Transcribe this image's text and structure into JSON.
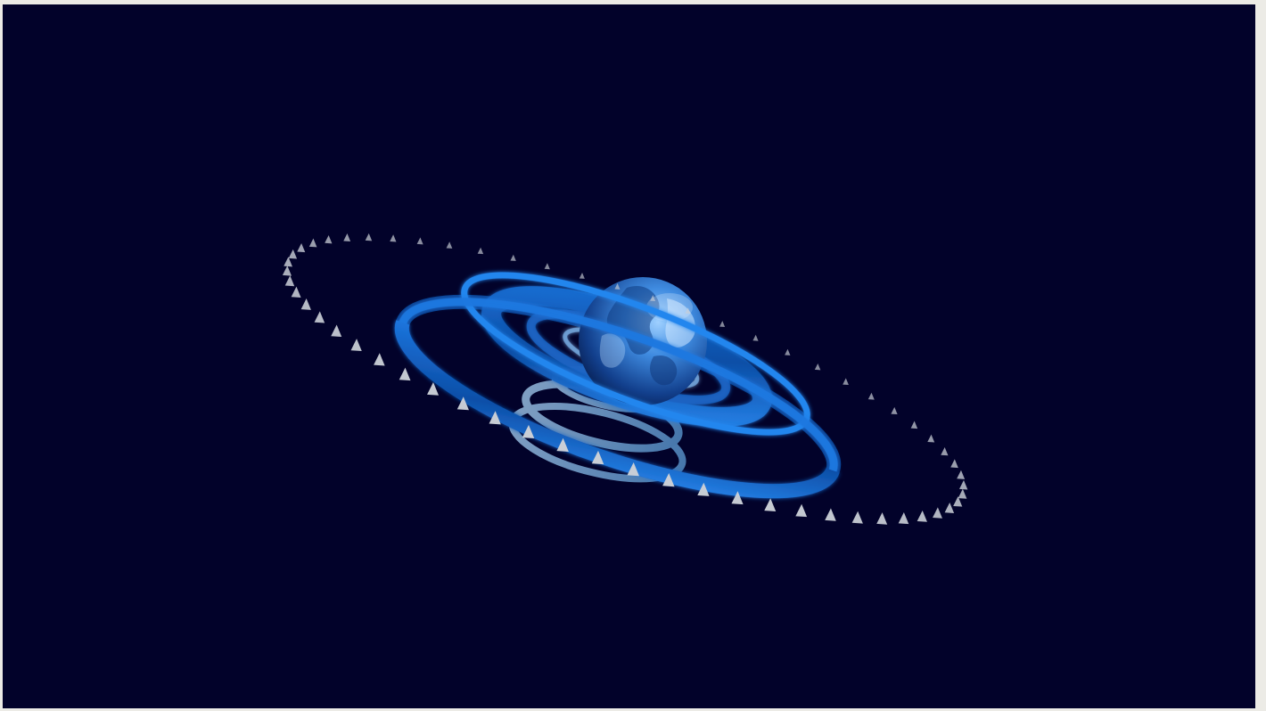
{
  "scene": {
    "subject": "globe-with-orbit-rings",
    "colors": {
      "page_border": "#ecebe6",
      "background": "#02022a",
      "ring_bright": "#1e7ee8",
      "ring_dark": "#0b3f8f",
      "globe_light": "#6fb6ff",
      "globe_dark": "#0a2c6e",
      "marker": "#c9ced6",
      "ring_pale": "#8fbfe8"
    },
    "orbit_marker_count": 60
  }
}
